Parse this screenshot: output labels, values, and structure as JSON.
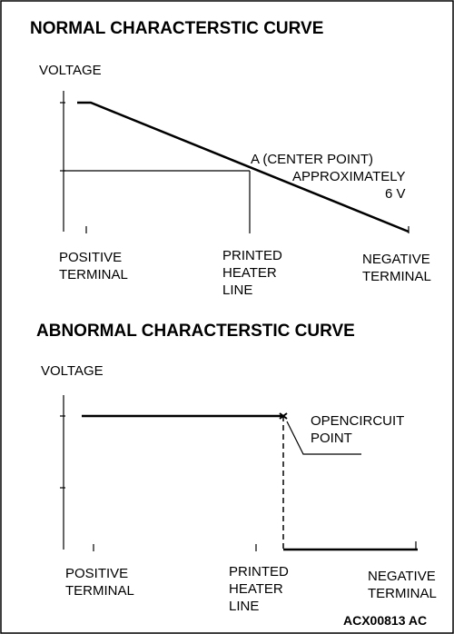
{
  "diagrams": [
    {
      "title": "NORMAL CHARACTERSTIC CURVE",
      "y_label": "VOLTAGE",
      "x_labels": [
        [
          "POSITIVE",
          "TERMINAL"
        ],
        [
          "PRINTED",
          "HEATER",
          "LINE"
        ],
        [
          "NEGATIVE",
          "TERMINAL"
        ]
      ],
      "annotation": [
        "A (CENTER POINT)",
        "APPROXIMATELY",
        "6 V"
      ]
    },
    {
      "title": "ABNORMAL CHARACTERSTIC CURVE",
      "y_label": "VOLTAGE",
      "x_labels": [
        [
          "POSITIVE",
          "TERMINAL"
        ],
        [
          "PRINTED",
          "HEATER",
          "LINE"
        ],
        [
          "NEGATIVE",
          "TERMINAL"
        ]
      ],
      "annotation": [
        "OPENCIRCUIT",
        "POINT"
      ]
    }
  ],
  "figure_id": "ACX00813 AC"
}
